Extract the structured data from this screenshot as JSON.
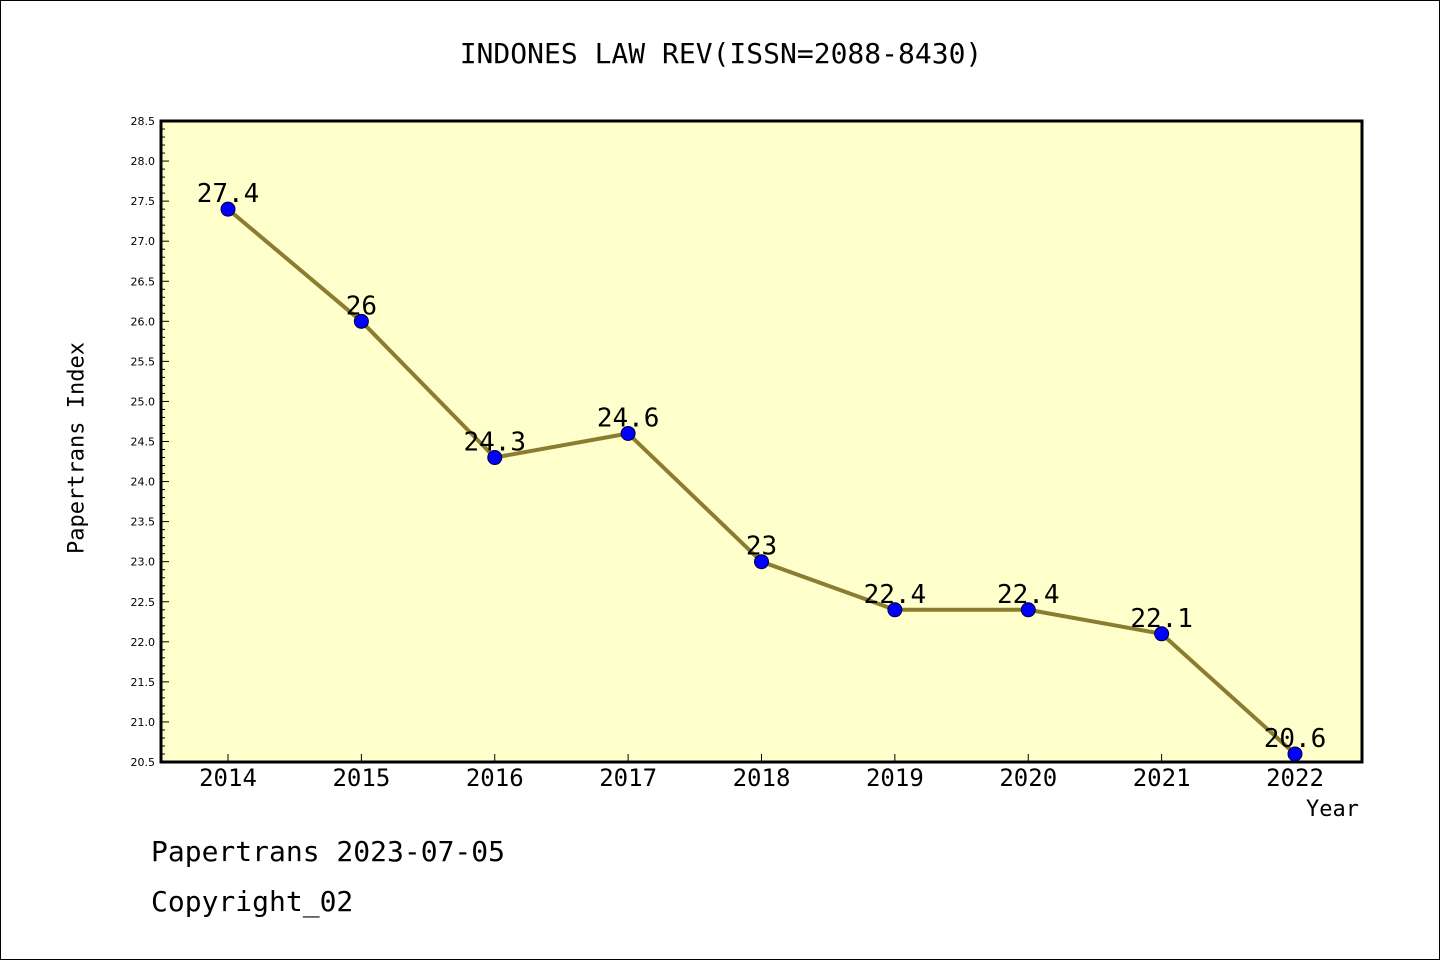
{
  "chart_data": {
    "type": "line",
    "title": "INDONES LAW REV(ISSN=2088-8430)",
    "xlabel": "Year",
    "ylabel": "Papertrans Index",
    "categories": [
      "2014",
      "2015",
      "2016",
      "2017",
      "2018",
      "2019",
      "2020",
      "2021",
      "2022"
    ],
    "series": [
      {
        "values": [
          27.4,
          26,
          24.3,
          24.6,
          23,
          22.4,
          22.4,
          22.1,
          20.6
        ]
      }
    ],
    "data_labels": [
      "27.4",
      "26",
      "24.3",
      "24.6",
      "23",
      "22.4",
      "22.4",
      "22.1",
      "20.6"
    ],
    "ylim": [
      20.5,
      28.5
    ],
    "yticks": [
      "20.5",
      "21.0",
      "21.5",
      "22.0",
      "22.5",
      "23.0",
      "23.5",
      "24.0",
      "24.5",
      "25.0",
      "25.5",
      "26.0",
      "26.5",
      "27.0",
      "27.5",
      "28.0",
      "28.5"
    ],
    "grid": false,
    "colors": {
      "plot_background": "#ffffcc",
      "line": "#8b7d2f",
      "marker": "#0000ff"
    }
  },
  "footer": {
    "date_line": "Papertrans 2023-07-05",
    "copyright": "Copyright_02"
  }
}
